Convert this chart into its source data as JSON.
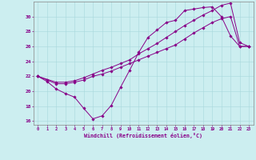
{
  "bg_color": "#cceef0",
  "grid_color": "#a8d8dc",
  "line_color": "#880088",
  "xlim": [
    -0.5,
    23.5
  ],
  "ylim": [
    15.5,
    32.0
  ],
  "xticks": [
    0,
    1,
    2,
    3,
    4,
    5,
    6,
    7,
    8,
    9,
    10,
    11,
    12,
    13,
    14,
    15,
    16,
    17,
    18,
    19,
    20,
    21,
    22,
    23
  ],
  "yticks": [
    16,
    18,
    20,
    22,
    24,
    26,
    28,
    30
  ],
  "xlabel": "Windchill (Refroidissement éolien,°C)",
  "line1_x": [
    0,
    1,
    2,
    3,
    4,
    5,
    6,
    7,
    8,
    9,
    10,
    11,
    12,
    13,
    14,
    15,
    16,
    17,
    18,
    19,
    20,
    21,
    22,
    23
  ],
  "line1_y": [
    22.0,
    21.3,
    20.3,
    19.7,
    19.2,
    17.7,
    16.3,
    16.7,
    18.1,
    20.5,
    22.8,
    25.2,
    27.2,
    28.2,
    29.2,
    29.5,
    30.8,
    31.0,
    31.2,
    31.3,
    30.0,
    27.4,
    26.0,
    26.0
  ],
  "line2_x": [
    0,
    1,
    2,
    3,
    4,
    5,
    6,
    7,
    8,
    9,
    10,
    11,
    12,
    13,
    14,
    15,
    16,
    17,
    18,
    19,
    20,
    21,
    22,
    23
  ],
  "line2_y": [
    22.0,
    21.5,
    21.0,
    21.0,
    21.2,
    21.5,
    22.0,
    22.3,
    22.7,
    23.2,
    23.7,
    24.2,
    24.7,
    25.2,
    25.7,
    26.2,
    27.0,
    27.8,
    28.5,
    29.2,
    29.7,
    30.0,
    26.0,
    26.0
  ],
  "line3_x": [
    0,
    2,
    3,
    4,
    5,
    6,
    7,
    8,
    9,
    10,
    11,
    12,
    13,
    14,
    15,
    16,
    17,
    18,
    19,
    20,
    21,
    22,
    23
  ],
  "line3_y": [
    22.0,
    21.2,
    21.2,
    21.4,
    21.8,
    22.3,
    22.8,
    23.2,
    23.7,
    24.2,
    25.0,
    25.7,
    26.4,
    27.2,
    28.0,
    28.8,
    29.5,
    30.2,
    30.8,
    31.5,
    31.8,
    26.5,
    26.0
  ]
}
